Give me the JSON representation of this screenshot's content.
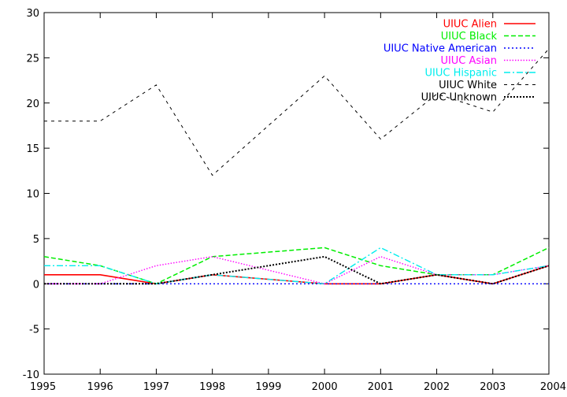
{
  "chart_data": {
    "type": "line",
    "title": "",
    "xlabel": "",
    "ylabel": "",
    "x": [
      1995,
      1996,
      1997,
      1998,
      1999,
      2000,
      2001,
      2002,
      2003,
      2004
    ],
    "xlim": [
      1995,
      2004
    ],
    "ylim": [
      -10,
      30
    ],
    "x_ticks": [
      "1995",
      "1996",
      "1997",
      "1998",
      "1999",
      "2000",
      "2001",
      "2002",
      "2003",
      "2004"
    ],
    "y_ticks": [
      "-10",
      "-5",
      "0",
      "5",
      "10",
      "15",
      "20",
      "25",
      "30"
    ],
    "grid": false,
    "legend_position": "top-right",
    "series": [
      {
        "name": "UIUC Alien",
        "color": "#ff0000",
        "dash": "solid",
        "values": [
          1,
          1,
          0,
          1,
          null,
          0,
          0,
          1,
          0,
          2
        ]
      },
      {
        "name": "UIUC Black",
        "color": "#00ee00",
        "dash": "dashed",
        "values": [
          3,
          2,
          0,
          3,
          null,
          4,
          2,
          1,
          1,
          4
        ]
      },
      {
        "name": "UIUC Native American",
        "color": "#0000ff",
        "dash": "dotted",
        "values": [
          0,
          0,
          0,
          0,
          null,
          0,
          0,
          0,
          0,
          0
        ]
      },
      {
        "name": "UIUC Asian",
        "color": "#ff00ff",
        "dash": "dotted-fine",
        "values": [
          0,
          0,
          2,
          3,
          null,
          0,
          3,
          1,
          1,
          2
        ]
      },
      {
        "name": "UIUC Hispanic",
        "color": "#00eeee",
        "dash": "dashdot",
        "values": [
          2,
          2,
          0,
          1,
          null,
          0,
          4,
          1,
          1,
          2
        ]
      },
      {
        "name": "UIUC White",
        "color": "#000000",
        "dash": "sparse",
        "values": [
          18,
          18,
          22,
          12,
          null,
          23,
          16,
          21,
          19,
          26
        ]
      },
      {
        "name": "UIUC Unknown",
        "color": "#000000",
        "dash": "dense-dotted",
        "values": [
          0,
          0,
          0,
          1,
          null,
          3,
          0,
          1,
          0,
          2
        ]
      }
    ]
  }
}
